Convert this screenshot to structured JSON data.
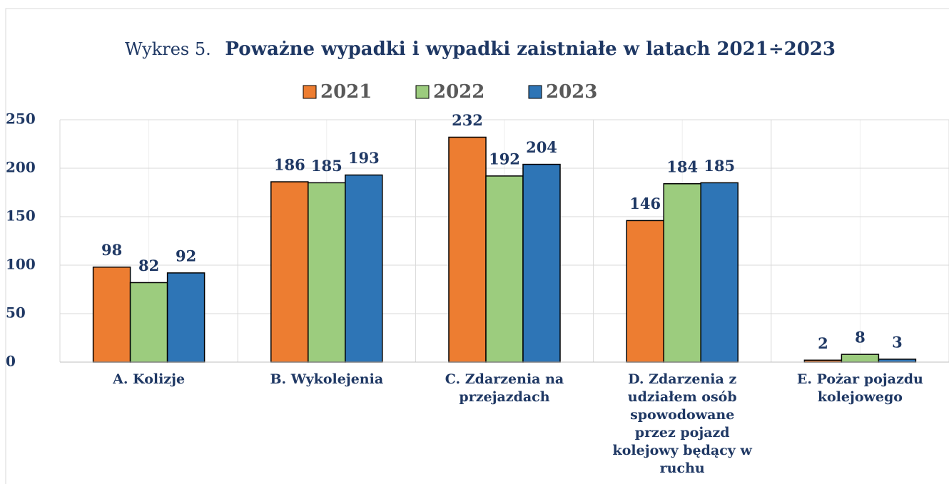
{
  "chart_data": {
    "type": "bar",
    "title_prefix": "Wykres 5.",
    "title": "Poważne wypadki i wypadki zaistniałe w latach 2021÷2023",
    "categories": [
      "A. Kolizje",
      "B. Wykolejenia",
      "C. Zdarzenia na przejazdach",
      "D. Zdarzenia z udziałem osób spowodowane przez pojazd kolejowy będący w ruchu",
      "E. Pożar pojazdu kolejowego"
    ],
    "series": [
      {
        "name": "2021",
        "color": "#ed7d31",
        "values": [
          98,
          186,
          232,
          146,
          2
        ]
      },
      {
        "name": "2022",
        "color": "#9ccc7e",
        "values": [
          82,
          185,
          192,
          184,
          8
        ]
      },
      {
        "name": "2023",
        "color": "#2e75b6",
        "values": [
          92,
          193,
          204,
          185,
          3
        ]
      }
    ],
    "ylim": [
      0,
      250
    ],
    "yticks": [
      0,
      50,
      100,
      150,
      200,
      250
    ],
    "grid": true,
    "legend": "top"
  }
}
